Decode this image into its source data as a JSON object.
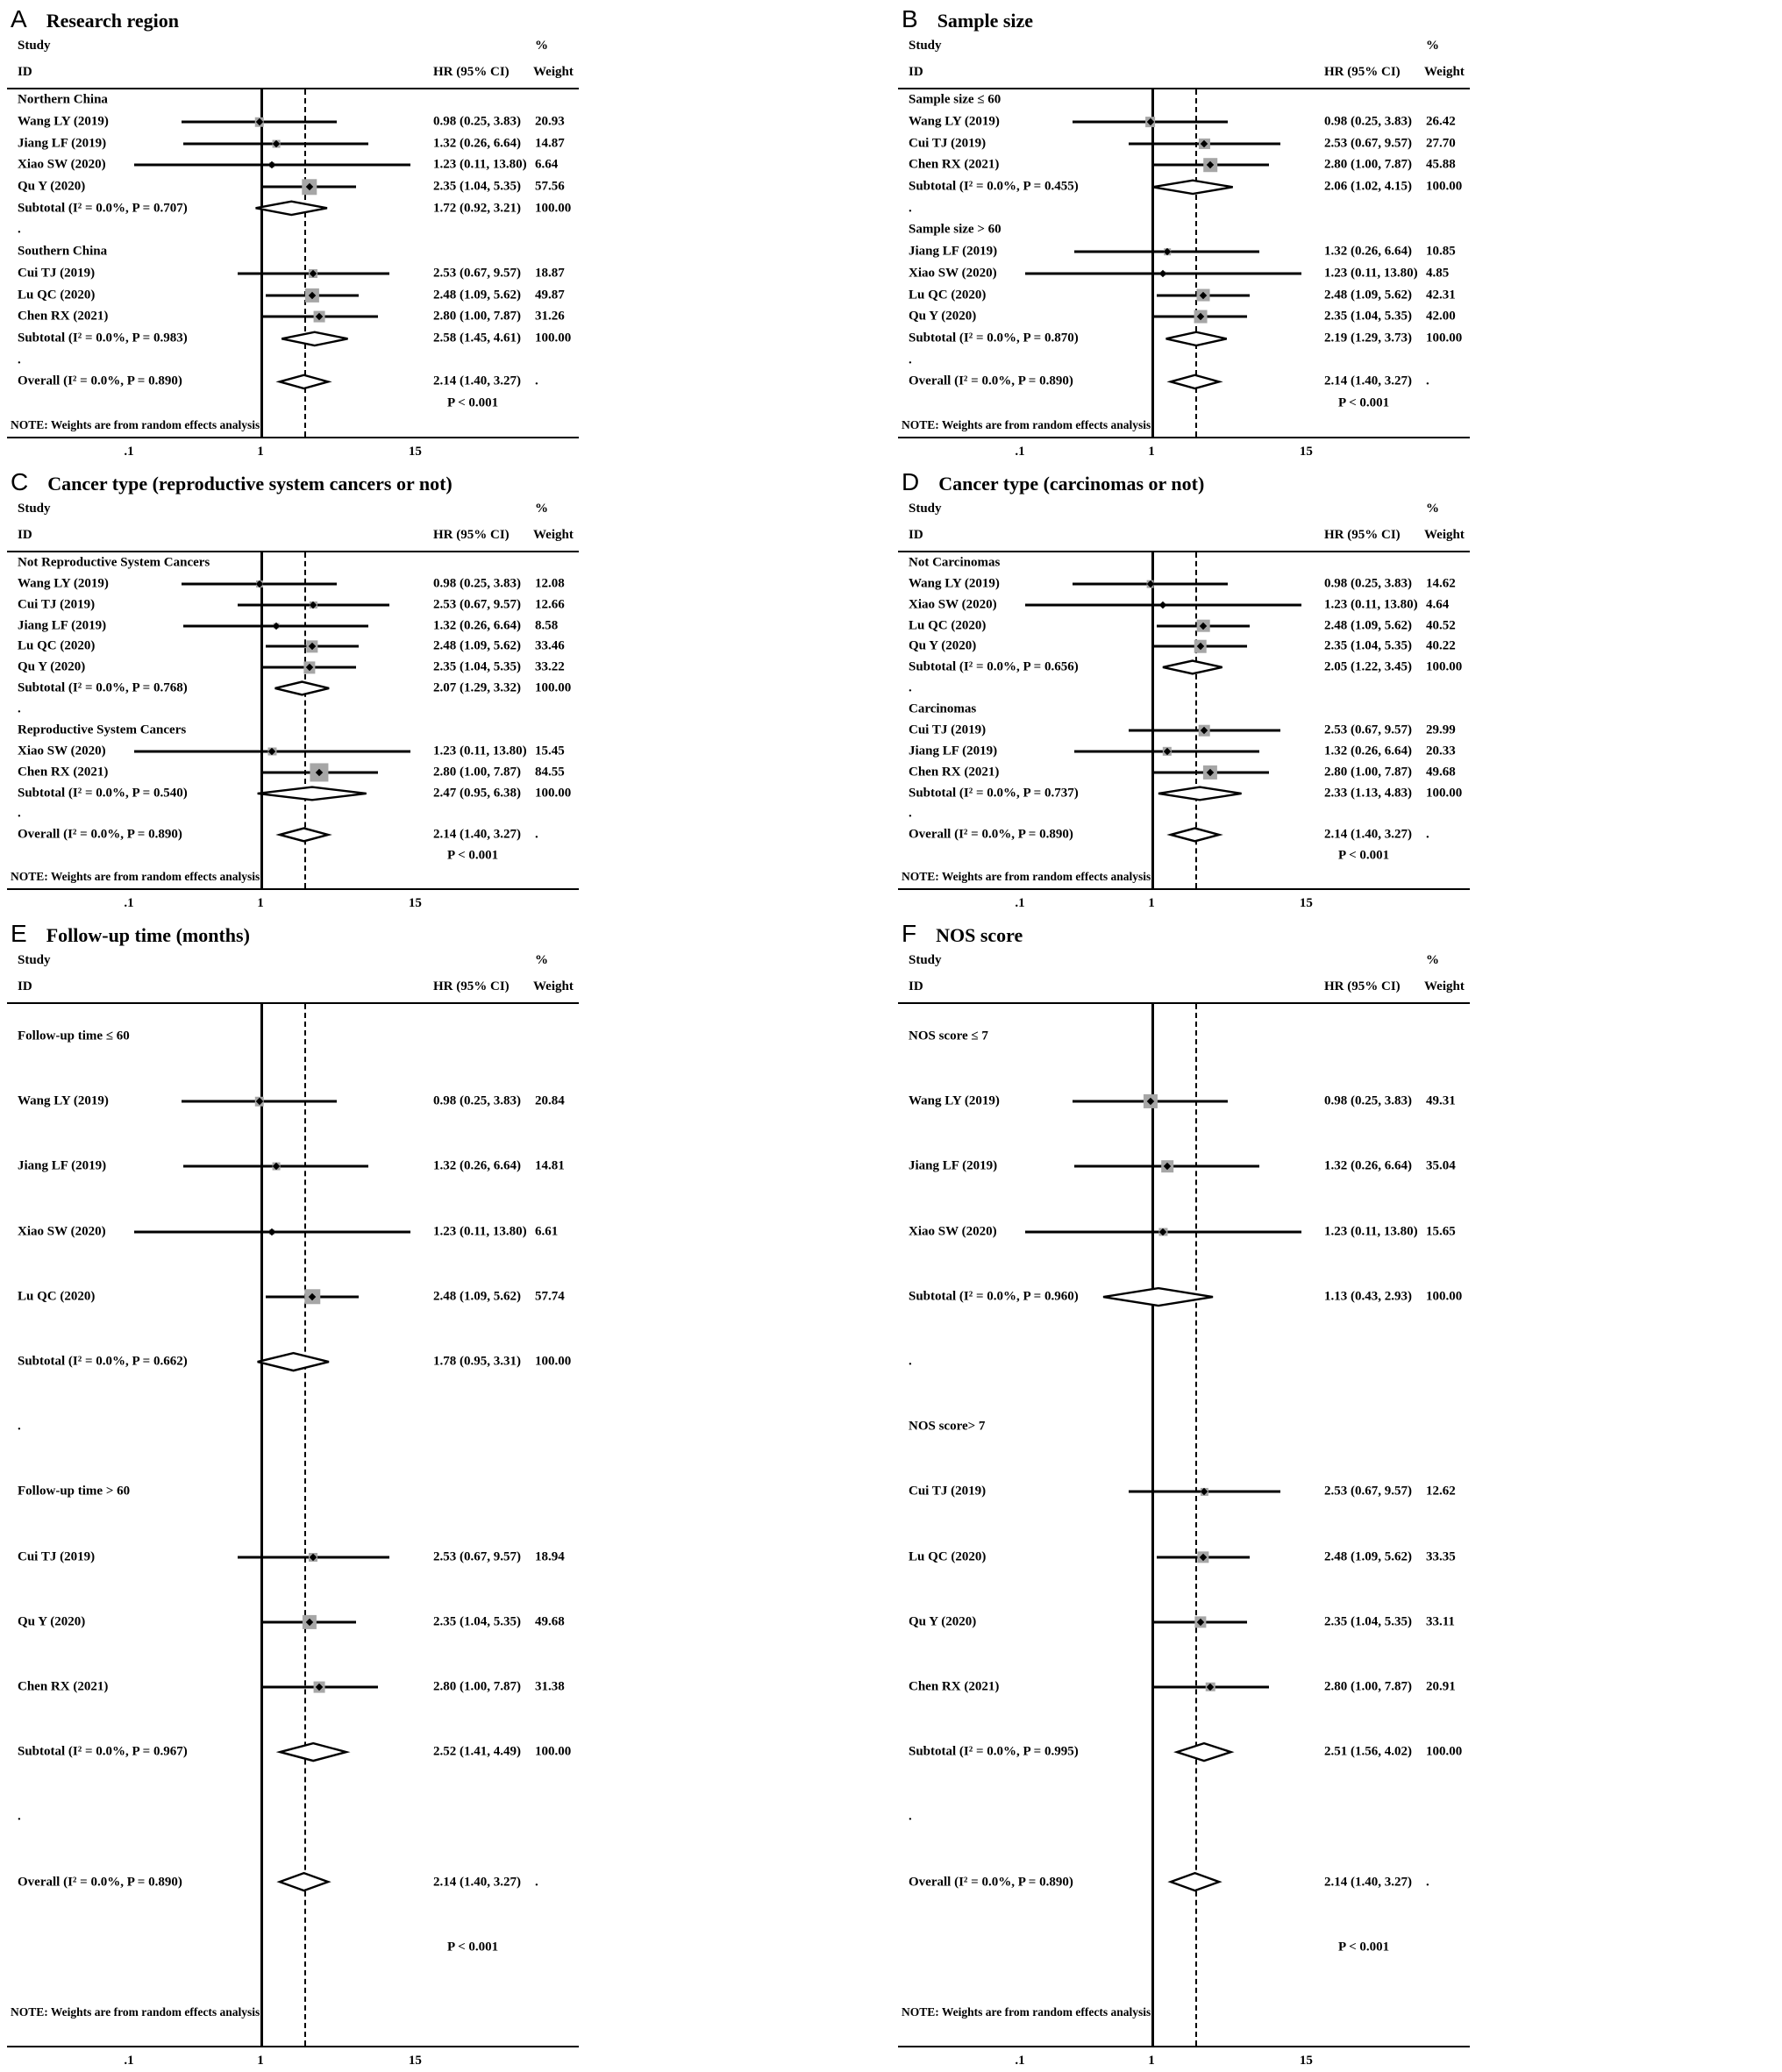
{
  "figure": {
    "col_study": "Study",
    "col_id": "ID",
    "col_hr": "HR (95% CI)",
    "col_pct": "%",
    "col_weight": "Weight",
    "note": "NOTE: Weights are from random effects analysis",
    "p_text": "P < 0.001",
    "dot": ".",
    "axis_ticks": [
      ".1",
      "1",
      "15"
    ],
    "axis_tick_values": [
      0.1,
      1,
      15
    ],
    "marker_color": "#a6a6a6",
    "line_color": "#000000"
  },
  "chart_data": {
    "type": "forest",
    "x_scale": "log",
    "panels": [
      {
        "label": "A",
        "title": "Research region",
        "groups": [
          {
            "heading": "Northern China",
            "studies": [
              {
                "name": "Wang LY (2019)",
                "hr": 0.98,
                "lo": 0.25,
                "hi": 3.83,
                "hr_text": "0.98 (0.25, 3.83)",
                "weight": "20.93"
              },
              {
                "name": "Jiang LF (2019)",
                "hr": 1.32,
                "lo": 0.26,
                "hi": 6.64,
                "hr_text": "1.32 (0.26, 6.64)",
                "weight": "14.87"
              },
              {
                "name": "Xiao SW (2020)",
                "hr": 1.23,
                "lo": 0.11,
                "hi": 13.8,
                "hr_text": "1.23 (0.11, 13.80)",
                "weight": "6.64"
              },
              {
                "name": "Qu Y (2020)",
                "hr": 2.35,
                "lo": 1.04,
                "hi": 5.35,
                "hr_text": "2.35 (1.04, 5.35)",
                "weight": "57.56"
              }
            ],
            "subtotal": {
              "name": "Subtotal  (I² = 0.0%, P = 0.707)",
              "hr": 1.72,
              "lo": 0.92,
              "hi": 3.21,
              "hr_text": "1.72 (0.92, 3.21)",
              "weight": "100.00"
            }
          },
          {
            "heading": "Southern China",
            "studies": [
              {
                "name": "Cui TJ (2019)",
                "hr": 2.53,
                "lo": 0.67,
                "hi": 9.57,
                "hr_text": "2.53 (0.67, 9.57)",
                "weight": "18.87"
              },
              {
                "name": "Lu QC (2020)",
                "hr": 2.48,
                "lo": 1.09,
                "hi": 5.62,
                "hr_text": "2.48 (1.09, 5.62)",
                "weight": "49.87"
              },
              {
                "name": "Chen RX (2021)",
                "hr": 2.8,
                "lo": 1.0,
                "hi": 7.87,
                "hr_text": "2.80 (1.00, 7.87)",
                "weight": "31.26"
              }
            ],
            "subtotal": {
              "name": "Subtotal  (I² = 0.0%, P = 0.983)",
              "hr": 2.58,
              "lo": 1.45,
              "hi": 4.61,
              "hr_text": "2.58 (1.45, 4.61)",
              "weight": "100.00"
            }
          }
        ],
        "overall": {
          "name": "Overall  (I² = 0.0%, P = 0.890)",
          "hr": 2.14,
          "lo": 1.4,
          "hi": 3.27,
          "hr_text": "2.14 (1.40, 3.27)",
          "weight": "."
        }
      },
      {
        "label": "B",
        "title": "Sample size",
        "groups": [
          {
            "heading": "Sample size ≤ 60",
            "studies": [
              {
                "name": "Wang LY (2019)",
                "hr": 0.98,
                "lo": 0.25,
                "hi": 3.83,
                "hr_text": "0.98 (0.25, 3.83)",
                "weight": "26.42"
              },
              {
                "name": "Cui TJ (2019)",
                "hr": 2.53,
                "lo": 0.67,
                "hi": 9.57,
                "hr_text": "2.53 (0.67, 9.57)",
                "weight": "27.70"
              },
              {
                "name": "Chen RX (2021)",
                "hr": 2.8,
                "lo": 1.0,
                "hi": 7.87,
                "hr_text": "2.80 (1.00, 7.87)",
                "weight": "45.88"
              }
            ],
            "subtotal": {
              "name": "Subtotal  (I² = 0.0%, P = 0.455)",
              "hr": 2.06,
              "lo": 1.02,
              "hi": 4.15,
              "hr_text": "2.06 (1.02, 4.15)",
              "weight": "100.00"
            }
          },
          {
            "heading": "Sample size > 60",
            "studies": [
              {
                "name": "Jiang LF (2019)",
                "hr": 1.32,
                "lo": 0.26,
                "hi": 6.64,
                "hr_text": "1.32 (0.26, 6.64)",
                "weight": "10.85"
              },
              {
                "name": "Xiao SW (2020)",
                "hr": 1.23,
                "lo": 0.11,
                "hi": 13.8,
                "hr_text": "1.23 (0.11, 13.80)",
                "weight": "4.85"
              },
              {
                "name": "Lu QC (2020)",
                "hr": 2.48,
                "lo": 1.09,
                "hi": 5.62,
                "hr_text": "2.48 (1.09, 5.62)",
                "weight": "42.31"
              },
              {
                "name": "Qu Y (2020)",
                "hr": 2.35,
                "lo": 1.04,
                "hi": 5.35,
                "hr_text": "2.35 (1.04, 5.35)",
                "weight": "42.00"
              }
            ],
            "subtotal": {
              "name": "Subtotal  (I² = 0.0%, P = 0.870)",
              "hr": 2.19,
              "lo": 1.29,
              "hi": 3.73,
              "hr_text": "2.19 (1.29, 3.73)",
              "weight": "100.00"
            }
          }
        ],
        "overall": {
          "name": "Overall  (I² = 0.0%, P = 0.890)",
          "hr": 2.14,
          "lo": 1.4,
          "hi": 3.27,
          "hr_text": "2.14 (1.40, 3.27)",
          "weight": "."
        }
      },
      {
        "label": "C",
        "title": "Cancer type (reproductive system cancers or not)",
        "groups": [
          {
            "heading": "Not Reproductive System Cancers",
            "studies": [
              {
                "name": "Wang LY (2019)",
                "hr": 0.98,
                "lo": 0.25,
                "hi": 3.83,
                "hr_text": "0.98 (0.25, 3.83)",
                "weight": "12.08"
              },
              {
                "name": "Cui TJ (2019)",
                "hr": 2.53,
                "lo": 0.67,
                "hi": 9.57,
                "hr_text": "2.53 (0.67, 9.57)",
                "weight": "12.66"
              },
              {
                "name": "Jiang LF (2019)",
                "hr": 1.32,
                "lo": 0.26,
                "hi": 6.64,
                "hr_text": "1.32 (0.26, 6.64)",
                "weight": "8.58"
              },
              {
                "name": "Lu QC (2020)",
                "hr": 2.48,
                "lo": 1.09,
                "hi": 5.62,
                "hr_text": "2.48 (1.09, 5.62)",
                "weight": "33.46"
              },
              {
                "name": "Qu Y (2020)",
                "hr": 2.35,
                "lo": 1.04,
                "hi": 5.35,
                "hr_text": "2.35 (1.04, 5.35)",
                "weight": "33.22"
              }
            ],
            "subtotal": {
              "name": "Subtotal  (I² = 0.0%, P = 0.768)",
              "hr": 2.07,
              "lo": 1.29,
              "hi": 3.32,
              "hr_text": "2.07 (1.29, 3.32)",
              "weight": "100.00"
            }
          },
          {
            "heading": "Reproductive System Cancers",
            "studies": [
              {
                "name": "Xiao SW (2020)",
                "hr": 1.23,
                "lo": 0.11,
                "hi": 13.8,
                "hr_text": "1.23 (0.11, 13.80)",
                "weight": "15.45"
              },
              {
                "name": "Chen RX (2021)",
                "hr": 2.8,
                "lo": 1.0,
                "hi": 7.87,
                "hr_text": "2.80 (1.00, 7.87)",
                "weight": "84.55"
              }
            ],
            "subtotal": {
              "name": "Subtotal  (I² = 0.0%, P = 0.540)",
              "hr": 2.47,
              "lo": 0.95,
              "hi": 6.38,
              "hr_text": "2.47 (0.95, 6.38)",
              "weight": "100.00"
            }
          }
        ],
        "overall": {
          "name": "Overall  (I² = 0.0%, P = 0.890)",
          "hr": 2.14,
          "lo": 1.4,
          "hi": 3.27,
          "hr_text": "2.14 (1.40, 3.27)",
          "weight": "."
        }
      },
      {
        "label": "D",
        "title": "Cancer type (carcinomas or not)",
        "groups": [
          {
            "heading": "Not Carcinomas",
            "studies": [
              {
                "name": "Wang LY (2019)",
                "hr": 0.98,
                "lo": 0.25,
                "hi": 3.83,
                "hr_text": "0.98 (0.25, 3.83)",
                "weight": "14.62"
              },
              {
                "name": "Xiao SW (2020)",
                "hr": 1.23,
                "lo": 0.11,
                "hi": 13.8,
                "hr_text": "1.23 (0.11, 13.80)",
                "weight": "4.64"
              },
              {
                "name": "Lu QC (2020)",
                "hr": 2.48,
                "lo": 1.09,
                "hi": 5.62,
                "hr_text": "2.48 (1.09, 5.62)",
                "weight": "40.52"
              },
              {
                "name": "Qu Y (2020)",
                "hr": 2.35,
                "lo": 1.04,
                "hi": 5.35,
                "hr_text": "2.35 (1.04, 5.35)",
                "weight": "40.22"
              }
            ],
            "subtotal": {
              "name": "Subtotal  (I² = 0.0%, P = 0.656)",
              "hr": 2.05,
              "lo": 1.22,
              "hi": 3.45,
              "hr_text": "2.05 (1.22, 3.45)",
              "weight": "100.00"
            }
          },
          {
            "heading": "Carcinomas",
            "studies": [
              {
                "name": "Cui TJ (2019)",
                "hr": 2.53,
                "lo": 0.67,
                "hi": 9.57,
                "hr_text": "2.53 (0.67, 9.57)",
                "weight": "29.99"
              },
              {
                "name": "Jiang LF (2019)",
                "hr": 1.32,
                "lo": 0.26,
                "hi": 6.64,
                "hr_text": "1.32 (0.26, 6.64)",
                "weight": "20.33"
              },
              {
                "name": "Chen RX (2021)",
                "hr": 2.8,
                "lo": 1.0,
                "hi": 7.87,
                "hr_text": "2.80 (1.00, 7.87)",
                "weight": "49.68"
              }
            ],
            "subtotal": {
              "name": "Subtotal  (I² = 0.0%, P = 0.737)",
              "hr": 2.33,
              "lo": 1.13,
              "hi": 4.83,
              "hr_text": "2.33 (1.13, 4.83)",
              "weight": "100.00"
            }
          }
        ],
        "overall": {
          "name": "Overall  (I² = 0.0%, P = 0.890)",
          "hr": 2.14,
          "lo": 1.4,
          "hi": 3.27,
          "hr_text": "2.14 (1.40, 3.27)",
          "weight": "."
        }
      },
      {
        "label": "E",
        "title": "Follow-up time (months)",
        "groups": [
          {
            "heading": "Follow-up time ≤ 60",
            "studies": [
              {
                "name": "Wang LY (2019)",
                "hr": 0.98,
                "lo": 0.25,
                "hi": 3.83,
                "hr_text": "0.98 (0.25, 3.83)",
                "weight": "20.84"
              },
              {
                "name": "Jiang LF (2019)",
                "hr": 1.32,
                "lo": 0.26,
                "hi": 6.64,
                "hr_text": "1.32 (0.26, 6.64)",
                "weight": "14.81"
              },
              {
                "name": "Xiao SW (2020)",
                "hr": 1.23,
                "lo": 0.11,
                "hi": 13.8,
                "hr_text": "1.23 (0.11, 13.80)",
                "weight": "6.61"
              },
              {
                "name": "Lu QC (2020)",
                "hr": 2.48,
                "lo": 1.09,
                "hi": 5.62,
                "hr_text": "2.48 (1.09, 5.62)",
                "weight": "57.74"
              }
            ],
            "subtotal": {
              "name": "Subtotal  (I² = 0.0%, P = 0.662)",
              "hr": 1.78,
              "lo": 0.95,
              "hi": 3.31,
              "hr_text": "1.78 (0.95, 3.31)",
              "weight": "100.00"
            }
          },
          {
            "heading": "Follow-up time > 60",
            "studies": [
              {
                "name": "Cui TJ (2019)",
                "hr": 2.53,
                "lo": 0.67,
                "hi": 9.57,
                "hr_text": "2.53 (0.67, 9.57)",
                "weight": "18.94"
              },
              {
                "name": "Qu Y (2020)",
                "hr": 2.35,
                "lo": 1.04,
                "hi": 5.35,
                "hr_text": "2.35 (1.04, 5.35)",
                "weight": "49.68"
              },
              {
                "name": "Chen RX (2021)",
                "hr": 2.8,
                "lo": 1.0,
                "hi": 7.87,
                "hr_text": "2.80 (1.00, 7.87)",
                "weight": "31.38"
              }
            ],
            "subtotal": {
              "name": "Subtotal  (I² = 0.0%, P = 0.967)",
              "hr": 2.52,
              "lo": 1.41,
              "hi": 4.49,
              "hr_text": "2.52 (1.41, 4.49)",
              "weight": "100.00"
            }
          }
        ],
        "overall": {
          "name": "Overall  (I² = 0.0%, P = 0.890)",
          "hr": 2.14,
          "lo": 1.4,
          "hi": 3.27,
          "hr_text": "2.14 (1.40, 3.27)",
          "weight": "."
        }
      },
      {
        "label": "F",
        "title": "NOS score",
        "groups": [
          {
            "heading": "NOS score ≤ 7",
            "studies": [
              {
                "name": "Wang LY (2019)",
                "hr": 0.98,
                "lo": 0.25,
                "hi": 3.83,
                "hr_text": "0.98 (0.25, 3.83)",
                "weight": "49.31"
              },
              {
                "name": "Jiang LF (2019)",
                "hr": 1.32,
                "lo": 0.26,
                "hi": 6.64,
                "hr_text": "1.32 (0.26, 6.64)",
                "weight": "35.04"
              },
              {
                "name": "Xiao SW (2020)",
                "hr": 1.23,
                "lo": 0.11,
                "hi": 13.8,
                "hr_text": "1.23 (0.11, 13.80)",
                "weight": "15.65"
              }
            ],
            "subtotal": {
              "name": "Subtotal  (I² = 0.0%, P = 0.960)",
              "hr": 1.13,
              "lo": 0.43,
              "hi": 2.93,
              "hr_text": "1.13 (0.43, 2.93)",
              "weight": "100.00"
            }
          },
          {
            "heading": "NOS score> 7",
            "studies": [
              {
                "name": "Cui TJ (2019)",
                "hr": 2.53,
                "lo": 0.67,
                "hi": 9.57,
                "hr_text": "2.53 (0.67, 9.57)",
                "weight": "12.62"
              },
              {
                "name": "Lu QC (2020)",
                "hr": 2.48,
                "lo": 1.09,
                "hi": 5.62,
                "hr_text": "2.48 (1.09, 5.62)",
                "weight": "33.35"
              },
              {
                "name": "Qu Y (2020)",
                "hr": 2.35,
                "lo": 1.04,
                "hi": 5.35,
                "hr_text": "2.35 (1.04, 5.35)",
                "weight": "33.11"
              },
              {
                "name": "Chen RX (2021)",
                "hr": 2.8,
                "lo": 1.0,
                "hi": 7.87,
                "hr_text": "2.80 (1.00, 7.87)",
                "weight": "20.91"
              }
            ],
            "subtotal": {
              "name": "Subtotal  (I² = 0.0%, P = 0.995)",
              "hr": 2.51,
              "lo": 1.56,
              "hi": 4.02,
              "hr_text": "2.51 (1.56, 4.02)",
              "weight": "100.00"
            }
          }
        ],
        "overall": {
          "name": "Overall  (I² = 0.0%, P = 0.890)",
          "hr": 2.14,
          "lo": 1.4,
          "hi": 3.27,
          "hr_text": "2.14 (1.40, 3.27)",
          "weight": "."
        }
      }
    ]
  }
}
